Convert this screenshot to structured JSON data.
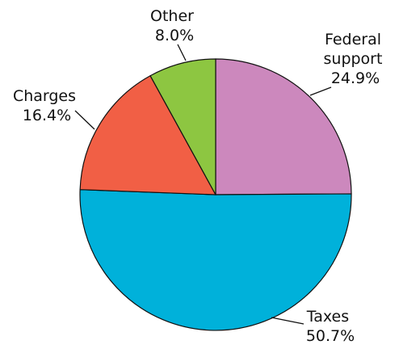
{
  "chart_data": {
    "type": "pie",
    "title": "",
    "slices": [
      {
        "label": "Federal support",
        "label_lines": [
          "Federal",
          "support"
        ],
        "value": 24.9,
        "value_text": "24.9%",
        "color": "#cc88bd"
      },
      {
        "label": "Taxes",
        "label_lines": [
          "Taxes"
        ],
        "value": 50.7,
        "value_text": "50.7%",
        "color": "#00b1da"
      },
      {
        "label": "Charges",
        "label_lines": [
          "Charges"
        ],
        "value": 16.4,
        "value_text": "16.4%",
        "color": "#f15f45"
      },
      {
        "label": "Other",
        "label_lines": [
          "Other"
        ],
        "value": 8.0,
        "value_text": "8.0%",
        "color": "#8dc641"
      }
    ],
    "start": "12 o'clock",
    "direction": "clockwise",
    "legend": "none (labels beside slices)"
  }
}
